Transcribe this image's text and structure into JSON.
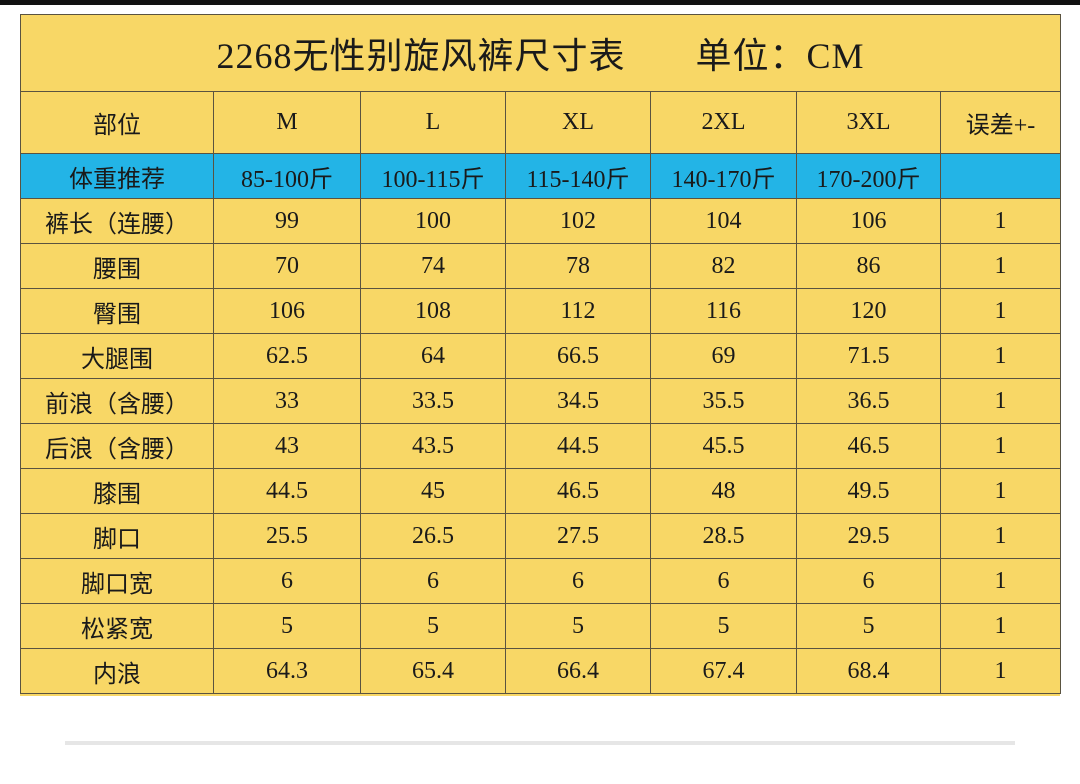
{
  "title": "2268无性别旋风裤尺寸表",
  "unit": "单位：CM",
  "table": {
    "header": [
      "部位",
      "M",
      "L",
      "XL",
      "2XL",
      "3XL",
      "误差+-"
    ],
    "weight": [
      "体重推荐",
      "85-100斤",
      "100-115斤",
      "115-140斤",
      "140-170斤",
      "170-200斤"
    ],
    "rows": [
      [
        "裤长（连腰）",
        "99",
        "100",
        "102",
        "104",
        "106",
        "1"
      ],
      [
        "腰围",
        "70",
        "74",
        "78",
        "82",
        "86",
        "1"
      ],
      [
        "臀围",
        "106",
        "108",
        "112",
        "116",
        "120",
        "1"
      ],
      [
        "大腿围",
        "62.5",
        "64",
        "66.5",
        "69",
        "71.5",
        "1"
      ],
      [
        "前浪（含腰）",
        "33",
        "33.5",
        "34.5",
        "35.5",
        "36.5",
        "1"
      ],
      [
        "后浪（含腰）",
        "43",
        "43.5",
        "44.5",
        "45.5",
        "46.5",
        "1"
      ],
      [
        "膝围",
        "44.5",
        "45",
        "46.5",
        "48",
        "49.5",
        "1"
      ],
      [
        "脚口",
        "25.5",
        "26.5",
        "27.5",
        "28.5",
        "29.5",
        "1"
      ],
      [
        "脚口宽",
        "6",
        "6",
        "6",
        "6",
        "6",
        "1"
      ],
      [
        "松紧宽",
        "5",
        "5",
        "5",
        "5",
        "5",
        "1"
      ],
      [
        "内浪",
        "64.3",
        "65.4",
        "66.4",
        "67.4",
        "68.4",
        "1"
      ]
    ]
  }
}
